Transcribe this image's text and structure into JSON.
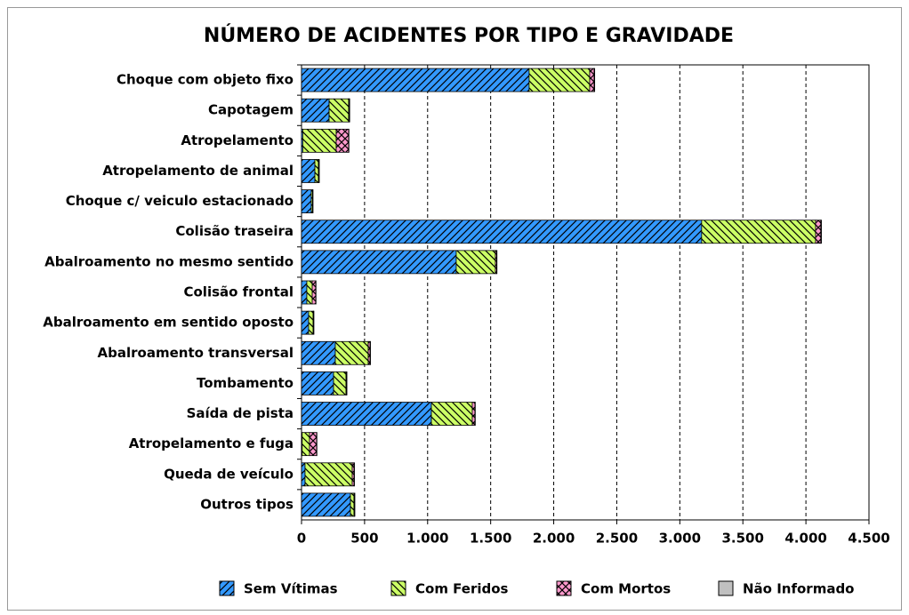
{
  "chart_data": {
    "type": "stacked_barh",
    "title": "NÚMERO DE ACIDENTES POR TIPO E GRAVIDADE",
    "categories": [
      "Choque com objeto fixo",
      "Capotagem",
      "Atropelamento",
      "Atropelamento de animal",
      "Choque c/ veiculo estacionado",
      "Colisão traseira",
      "Abalroamento no mesmo sentido",
      "Colisão frontal",
      "Abalroamento em sentido oposto",
      "Abalroamento transversal",
      "Tombamento",
      "Saída de pista",
      "Atropelamento e fuga",
      "Queda de veículo",
      "Outros tipos"
    ],
    "series": [
      {
        "name": "Sem Vítimas",
        "color": "#3399ff",
        "values": [
          1805,
          219,
          10,
          106,
          78,
          3173,
          1227,
          42,
          56,
          268,
          254,
          1030,
          5,
          28,
          388
        ]
      },
      {
        "name": "Com Feridos",
        "color": "#ccff66",
        "values": [
          480,
          155,
          265,
          28,
          10,
          903,
          310,
          43,
          36,
          261,
          99,
          324,
          58,
          374,
          28
        ]
      },
      {
        "name": "Com Mortos",
        "color": "#ff99cc",
        "values": [
          35,
          5,
          99,
          5,
          2,
          42,
          10,
          28,
          5,
          15,
          5,
          21,
          57,
          15,
          5
        ]
      },
      {
        "name": "Não Informado",
        "color": "#c0c0c0",
        "values": [
          5,
          3,
          2,
          2,
          1,
          5,
          3,
          2,
          1,
          3,
          2,
          3,
          2,
          3,
          2
        ]
      }
    ],
    "xlim": [
      0,
      4500
    ],
    "xticks": [
      0,
      500,
      {
        "value": 1000,
        "label": "1.000"
      },
      {
        "value": 1500,
        "label": "1.500"
      },
      {
        "value": 2000,
        "label": "2.000"
      },
      {
        "value": 2500,
        "label": "2.500"
      },
      {
        "value": 3000,
        "label": "3.000"
      },
      {
        "value": 3500,
        "label": "3.500"
      },
      {
        "value": 4000,
        "label": "4.000"
      },
      {
        "value": 4500,
        "label": "4.500"
      }
    ],
    "grid": true,
    "legend": "bottom"
  }
}
